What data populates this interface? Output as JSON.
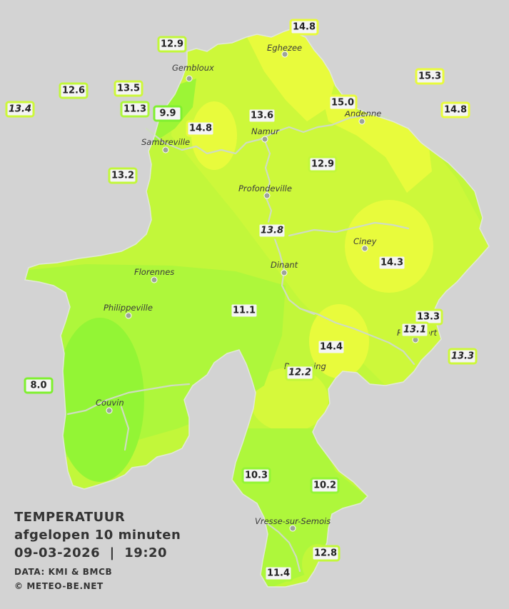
{
  "map": {
    "title": "TEMPERATUUR",
    "subtitle": "afgelopen 10 minuten",
    "datetime": "09-03-2026  |  19:20",
    "source": "DATA: KMI & BMCB",
    "copyright": "© METEO-BE.NET"
  },
  "colors": {
    "background": "#d3d3d3",
    "zone_yellow": "#e8fb3c",
    "zone_yellow_green": "#c2f73a",
    "zone_light_green": "#aef73b",
    "zone_green": "#93f535",
    "river": "#c9d7bb"
  },
  "places": [
    {
      "name": "Eghezee"
    },
    {
      "name": "Gembloux"
    },
    {
      "name": "Andenne"
    },
    {
      "name": "Namur"
    },
    {
      "name": "Sambreville"
    },
    {
      "name": "Profondeville"
    },
    {
      "name": "Ciney"
    },
    {
      "name": "Dinant"
    },
    {
      "name": "Florennes"
    },
    {
      "name": "Philippeville"
    },
    {
      "name": "Rochefort"
    },
    {
      "name": "Beauraing"
    },
    {
      "name": "Couvin"
    },
    {
      "name": "Vresse-sur-Semois"
    }
  ],
  "stations": [
    {
      "value": "14.8",
      "external": false
    },
    {
      "value": "12.9",
      "external": false
    },
    {
      "value": "15.3",
      "external": false
    },
    {
      "value": "12.6",
      "external": false
    },
    {
      "value": "13.5",
      "external": false
    },
    {
      "value": "15.0",
      "external": false
    },
    {
      "value": "13.4",
      "external": true
    },
    {
      "value": "11.3",
      "external": false
    },
    {
      "value": "9.9",
      "external": false
    },
    {
      "value": "13.6",
      "external": false
    },
    {
      "value": "14.8",
      "external": false
    },
    {
      "value": "14.8",
      "external": false
    },
    {
      "value": "12.9",
      "external": false
    },
    {
      "value": "13.2",
      "external": false
    },
    {
      "value": "13.8",
      "external": true
    },
    {
      "value": "14.3",
      "external": false
    },
    {
      "value": "11.1",
      "external": false
    },
    {
      "value": "13.3",
      "external": false
    },
    {
      "value": "13.1",
      "external": true
    },
    {
      "value": "14.4",
      "external": false
    },
    {
      "value": "13.3",
      "external": true
    },
    {
      "value": "12.2",
      "external": true
    },
    {
      "value": "8.0",
      "external": false
    },
    {
      "value": "10.3",
      "external": false
    },
    {
      "value": "10.2",
      "external": false
    },
    {
      "value": "12.8",
      "external": false
    },
    {
      "value": "11.4",
      "external": false
    }
  ]
}
